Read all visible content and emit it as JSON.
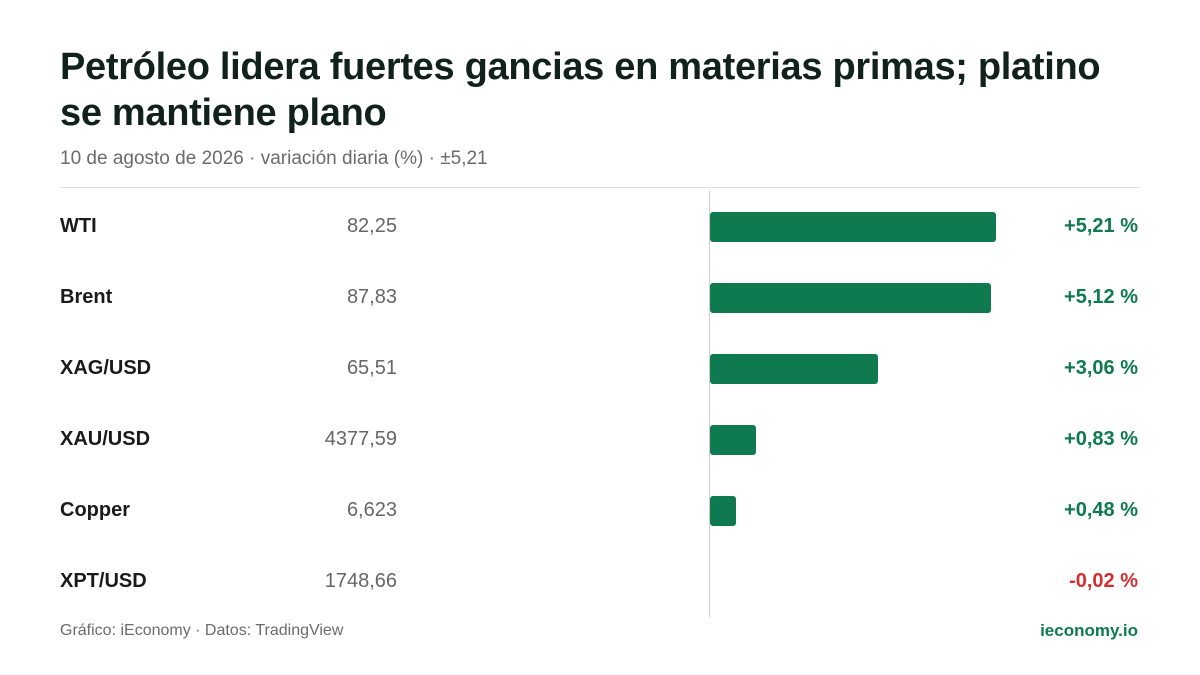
{
  "header": {
    "title": "Petróleo lidera fuertes gancias en materias primas; platino se mantiene plano",
    "subtitle": "10 de agosto de 2026 · variación diaria (%) · ±5,21"
  },
  "footer": {
    "credit": "Gráfico: iEconomy · Datos: TradingView",
    "brand": "ieconomy.io"
  },
  "colors": {
    "positive": "#0f7a4f",
    "negative": "#d32f2f"
  },
  "chart_data": {
    "type": "bar",
    "orientation": "horizontal",
    "scale_max_abs": 5.21,
    "categories": [
      "WTI",
      "Brent",
      "XAG/USD",
      "XAU/USD",
      "Copper",
      "XPT/USD"
    ],
    "prices": [
      "82,25",
      "87,83",
      "65,51",
      "4377,59",
      "6,623",
      "1748,66"
    ],
    "values": [
      5.21,
      5.12,
      3.06,
      0.83,
      0.48,
      -0.02
    ],
    "value_labels": [
      "+5,21 %",
      "+5,12 %",
      "+3,06 %",
      "+0,83 %",
      "+0,48 %",
      "-0,02 %"
    ]
  }
}
